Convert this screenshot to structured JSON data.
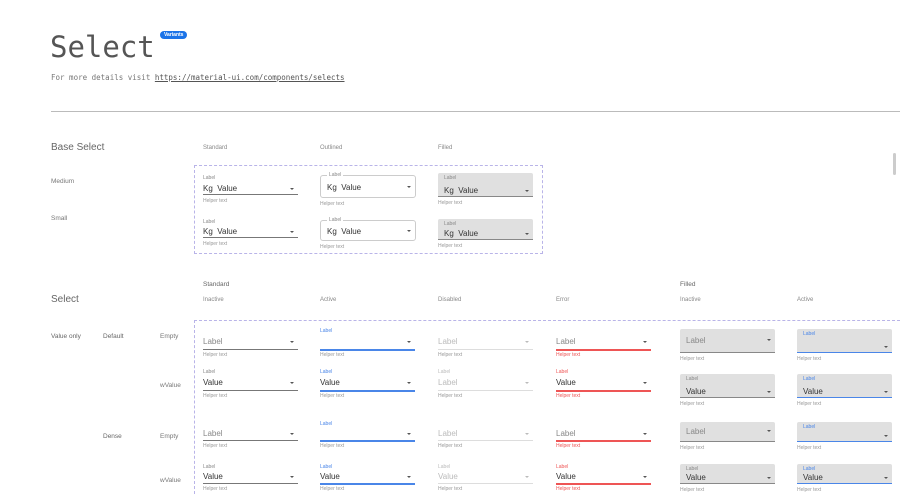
{
  "header": {
    "title": "Select",
    "badge": "Variants",
    "subtitle": "For more details visit",
    "link": "https://material-ui.com/components/selects"
  },
  "base": {
    "title": "Base Select",
    "columns": [
      "Standard",
      "Outlined",
      "Filled"
    ],
    "rows": [
      "Medium",
      "Small"
    ],
    "label": "Label",
    "prefix": "Kg",
    "value": "Value",
    "helper": "Helper text"
  },
  "select": {
    "title": "Select",
    "groups": [
      "Standard",
      "Filled"
    ],
    "columns": [
      "Inactive",
      "Active",
      "Disabled",
      "Error",
      "Inactive",
      "Active"
    ],
    "row_group": "Value only",
    "sizes": [
      "Default",
      "Dense"
    ],
    "states": [
      "Empty",
      "wValue"
    ],
    "label": "Label",
    "value": "Value",
    "helper": "Helper text",
    "disabled_default_value": "Label"
  },
  "colors": {
    "accent": "#4a86e8",
    "error": "#e55555",
    "badge": "#1a73e8",
    "filled_bg": "#e0e0e0"
  }
}
